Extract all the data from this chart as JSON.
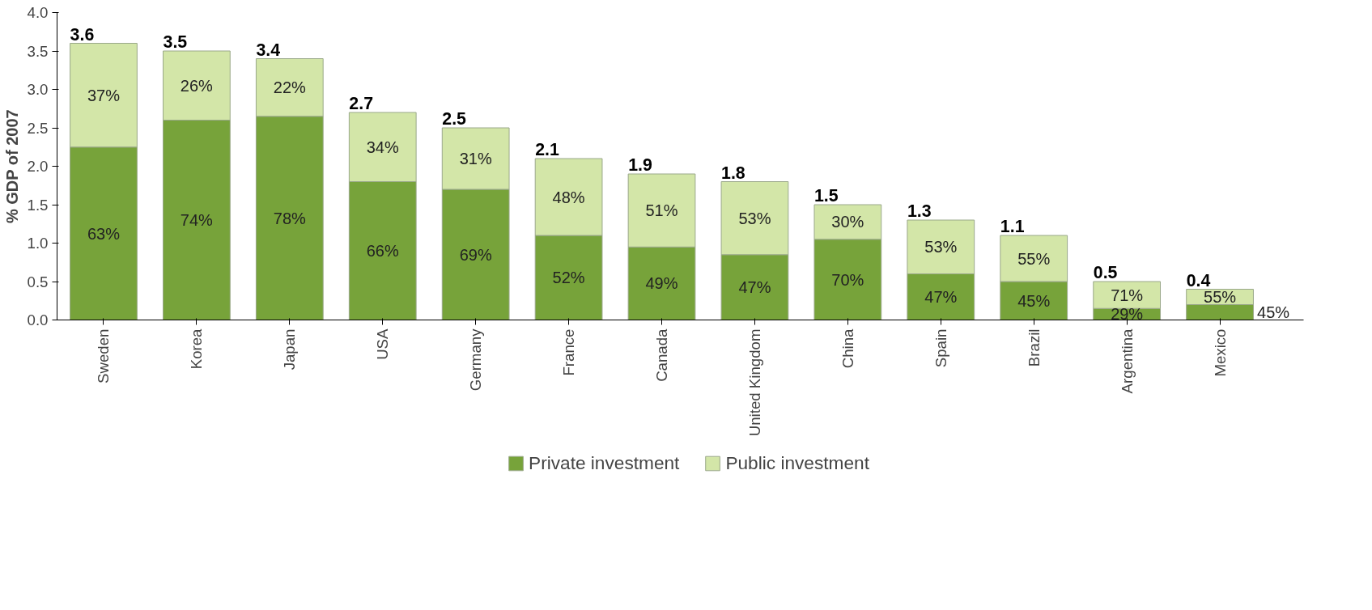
{
  "chart_data": {
    "type": "bar",
    "stacked": true,
    "ylabel": "% GDP of 2007",
    "categories": [
      "Sweden",
      "Korea",
      "Japan",
      "USA",
      "Germany",
      "France",
      "Canada",
      "United Kingdom",
      "China",
      "Spain",
      "Brazil",
      "Argentina",
      "Mexico"
    ],
    "series": [
      {
        "name": "Private investment",
        "color": "#77a33a",
        "values": [
          2.25,
          2.6,
          2.65,
          1.8,
          1.7,
          1.1,
          0.95,
          0.85,
          1.05,
          0.6,
          0.5,
          0.15,
          0.2
        ]
      },
      {
        "name": "Public investment",
        "color": "#d3e6a8",
        "values": [
          1.35,
          0.9,
          0.75,
          0.9,
          0.8,
          1.0,
          0.95,
          0.95,
          0.45,
          0.7,
          0.6,
          0.35,
          0.2
        ]
      }
    ],
    "annotations": [
      "63%",
      "37%",
      "74%",
      "26%",
      "78%",
      "22%",
      "66%",
      "34%",
      "69%",
      "31%",
      "52%",
      "48%",
      "49%",
      "51%",
      "47%",
      "53%",
      "70%",
      "30%",
      "47%",
      "53%",
      "45%",
      "55%",
      "29%",
      "71%",
      "45%",
      "55%"
    ],
    "totals": [
      "3.6",
      "3.5",
      "3.4",
      "2.7",
      "2.5",
      "2.1",
      "1.9",
      "1.8",
      "1.5",
      "1.3",
      "1.1",
      "0.5",
      "0.4"
    ],
    "ylim": [
      0,
      4
    ],
    "yticks": [
      {
        "value": 0,
        "label": "0.0"
      },
      {
        "value": 0.5,
        "label": "0.5"
      },
      {
        "value": 1,
        "label": "1.0"
      },
      {
        "value": 1.5,
        "label": "1.5"
      },
      {
        "value": 2,
        "label": "2.0"
      },
      {
        "value": 2.5,
        "label": "2.5"
      },
      {
        "value": 3,
        "label": "3.0"
      },
      {
        "value": 3.5,
        "label": "3.5"
      },
      {
        "value": 4,
        "label": "4.0"
      }
    ],
    "grid": false,
    "legend": "bottom"
  }
}
